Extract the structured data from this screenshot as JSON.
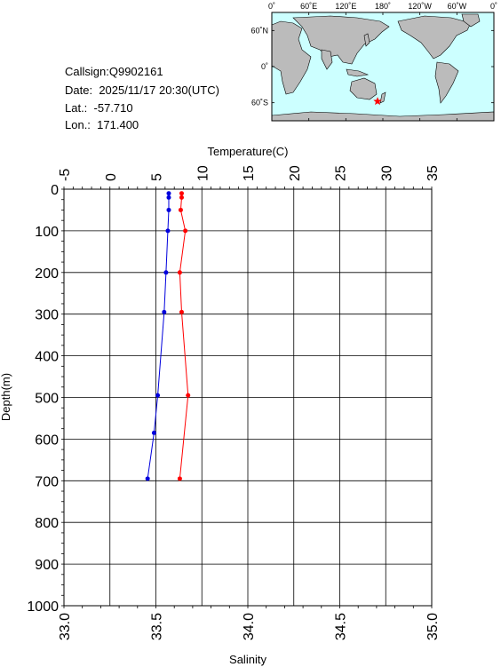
{
  "station": {
    "callsign_label": "Callsign:",
    "callsign": "Q9902161",
    "date_label": "Date:",
    "date": "2025/11/17 20:30(UTC)",
    "lat_label": "Lat.:",
    "lat": "-57.710",
    "lon_label": "Lon.:",
    "lon": "171.400"
  },
  "map": {
    "top_ticks": [
      "0˚",
      "60˚E",
      "120˚E",
      "180˚",
      "120˚W",
      "60˚W",
      "0˚"
    ],
    "side_ticks": [
      "60˚N",
      "0˚",
      "60˚S"
    ],
    "ocean_color": "#ccffff",
    "land_color": "#bbbbbb",
    "marker_color": "#ff0000",
    "marker_icon": "star-icon"
  },
  "chart_data": {
    "type": "line",
    "xlabel_top": "Temperature(C)",
    "xlabel_bottom": "Salinity",
    "ylabel": "Depth(m)",
    "temp_ticks": [
      "-5",
      "0",
      "5",
      "10",
      "15",
      "20",
      "25",
      "30",
      "35"
    ],
    "temp_lim": [
      -5,
      35
    ],
    "sal_ticks": [
      "33.0",
      "33.5",
      "34.0",
      "34.5",
      "35.0"
    ],
    "sal_lim": [
      33.0,
      35.0
    ],
    "depth_ticks": [
      "0",
      "100",
      "200",
      "300",
      "400",
      "500",
      "600",
      "700",
      "800",
      "900",
      "1000"
    ],
    "depth_lim": [
      0,
      1000
    ],
    "grid": true,
    "series": [
      {
        "axis": "temperature",
        "color": "#ff0000",
        "points": [
          [
            7.8,
            10
          ],
          [
            7.8,
            20
          ],
          [
            7.7,
            50
          ],
          [
            8.2,
            100
          ],
          [
            7.6,
            200
          ],
          [
            7.8,
            295
          ],
          [
            8.5,
            495
          ],
          [
            7.6,
            695
          ]
        ]
      },
      {
        "axis": "salinity",
        "color": "#0000dd",
        "points": [
          [
            33.57,
            10
          ],
          [
            33.57,
            20
          ],
          [
            33.57,
            50
          ],
          [
            33.565,
            100
          ],
          [
            33.555,
            200
          ],
          [
            33.545,
            295
          ],
          [
            33.51,
            495
          ],
          [
            33.49,
            585
          ],
          [
            33.455,
            695
          ]
        ]
      }
    ]
  }
}
